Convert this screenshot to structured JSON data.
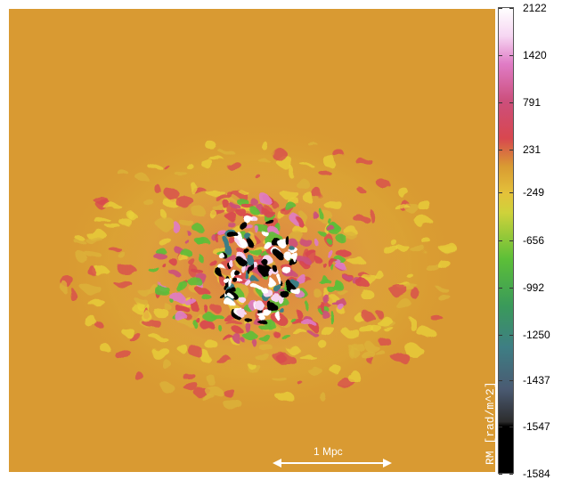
{
  "figure": {
    "colorbar_label": "RM [rad/m^2]",
    "colorbar_ticks": [
      "2122",
      "1420",
      "791",
      "231",
      "-249",
      "-656",
      "-992",
      "-1250",
      "-1437",
      "-1547",
      "-1584"
    ],
    "scale_bar_label": "1 Mpc",
    "colors": {
      "background_field": "#d99a32",
      "colormap": [
        "#000000",
        "#2c2c2c",
        "#4a5a72",
        "#3e7e84",
        "#3a9a5a",
        "#5cbf38",
        "#cfd23a",
        "#e4c23a",
        "#d99a32",
        "#d8474f",
        "#cc4f7c",
        "#e07cc6",
        "#f6d6f2",
        "#ffffff"
      ]
    }
  }
}
